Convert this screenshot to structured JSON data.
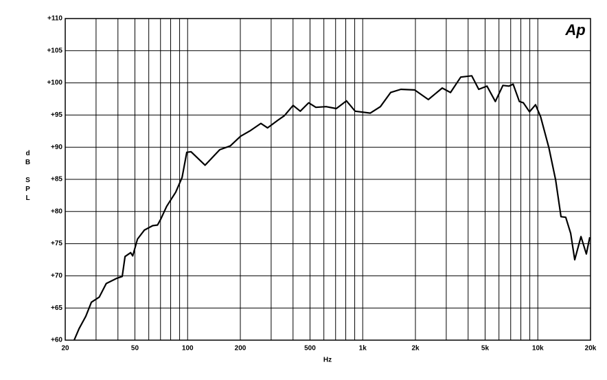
{
  "chart_data": {
    "type": "line",
    "logo": "Ap",
    "xlabel": "Hz",
    "ylabel": "dB SPL",
    "xscale": "log",
    "grid": true,
    "color": "#000000",
    "x": [
      22.5,
      24,
      26.2,
      28.2,
      31.3,
      34.3,
      39.3,
      42.3,
      43.9,
      47.3,
      48.6,
      51.7,
      56.6,
      63.2,
      67.3,
      70.5,
      75.9,
      85.5,
      93,
      98.9,
      104.6,
      125.9,
      152.5,
      175.3,
      200.5,
      228.9,
      262,
      286,
      328,
      357,
      400,
      440,
      491,
      540,
      618,
      707,
      808,
      905,
      1105,
      1262,
      1443,
      1651,
      1980,
      2370,
      2843,
      3172,
      3628,
      4193,
      4600,
      5124,
      5720,
      6320,
      6850,
      7230,
      7850,
      8270,
      8970,
      9700,
      10380,
      11570,
      12640,
      13560,
      14440,
      15400,
      16250,
      17640,
      18930,
      19800
    ],
    "values": [
      60,
      61.8,
      63.7,
      65.9,
      66.7,
      68.8,
      69.6,
      69.9,
      73,
      73.6,
      73.1,
      75.7,
      77.1,
      77.8,
      77.9,
      78.9,
      80.8,
      83,
      85.3,
      89.2,
      89.3,
      87.2,
      89.6,
      90.2,
      91.7,
      92.6,
      93.7,
      93,
      94.2,
      94.9,
      96.5,
      95.6,
      96.9,
      96.2,
      96.3,
      96,
      97.2,
      95.6,
      95.3,
      96.3,
      98.5,
      99,
      98.9,
      97.4,
      99.2,
      98.5,
      100.9,
      101.1,
      99,
      99.5,
      97.1,
      99.6,
      99.5,
      99.8,
      97.1,
      96.9,
      95.5,
      96.6,
      94.7,
      89.9,
      84.9,
      79.2,
      79.1,
      76.6,
      72.5,
      76.1,
      73.4,
      76
    ],
    "xlim": [
      20,
      20000
    ],
    "ylim": [
      60,
      110
    ],
    "xticks": [
      20,
      50,
      100,
      200,
      500,
      {
        "value": 1000,
        "label": "1k"
      },
      {
        "value": 2000,
        "label": "2k"
      },
      {
        "value": 5000,
        "label": "5k"
      },
      {
        "value": 10000,
        "label": "10k"
      },
      {
        "value": 20000,
        "label": "20k"
      }
    ],
    "xminorticks": [
      30,
      40,
      60,
      70,
      80,
      90,
      300,
      400,
      600,
      700,
      800,
      900,
      3000,
      4000,
      6000,
      7000,
      8000,
      9000
    ],
    "yticks": [
      {
        "value": 60,
        "label": "+60"
      },
      {
        "value": 65,
        "label": "+65"
      },
      {
        "value": 70,
        "label": "+70"
      },
      {
        "value": 75,
        "label": "+75"
      },
      {
        "value": 80,
        "label": "+80"
      },
      {
        "value": 85,
        "label": "+85"
      },
      {
        "value": 90,
        "label": "+90"
      },
      {
        "value": 95,
        "label": "+95"
      },
      {
        "value": 100,
        "label": "+100"
      },
      {
        "value": 105,
        "label": "+105"
      },
      {
        "value": 110,
        "label": "+110"
      }
    ]
  }
}
